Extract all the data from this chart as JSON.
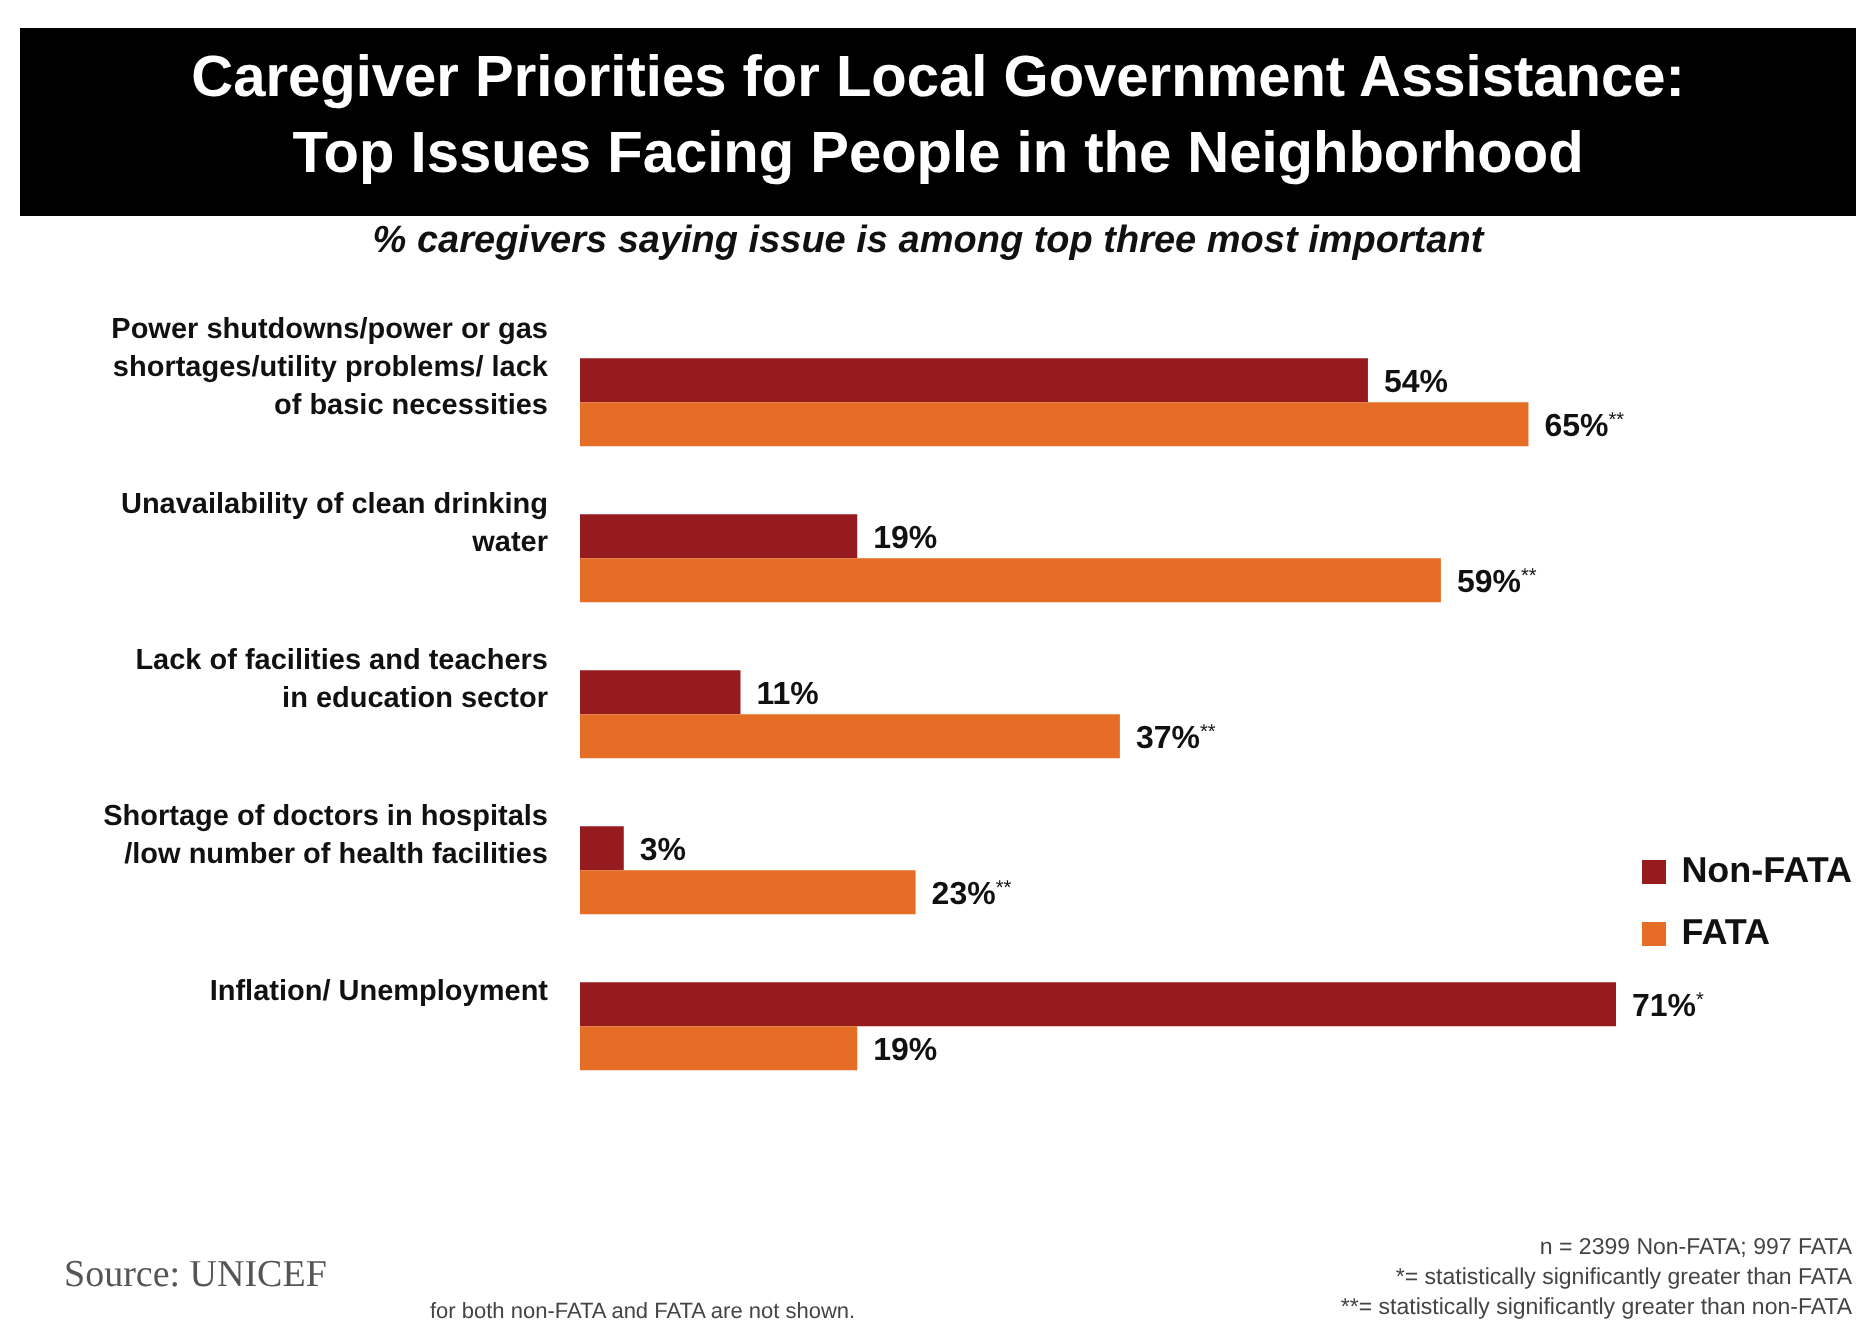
{
  "chart_data": {
    "type": "bar",
    "orientation": "horizontal",
    "title": "Caregiver Priorities for Local Government Assistance:\nTop Issues Facing People in the Neighborhood",
    "subtitle": "% caregivers saying issue is among top three most important",
    "categories": [
      "Power shutdowns/power or gas shortages/utility problems/ lack of basic necessities",
      "Unavailability of clean drinking water",
      "Lack of facilities and teachers in education sector",
      "Shortage of doctors in hospitals /low number of health facilities",
      "Inflation/ Unemployment"
    ],
    "series": [
      {
        "name": "Non-FATA",
        "color": "#961b1e",
        "values": [
          54,
          19,
          11,
          3,
          71
        ],
        "value_labels": [
          "54%",
          "19%",
          "11%",
          "3%",
          "71%$^{*}$"
        ]
      },
      {
        "name": "FATA",
        "color": "#e56d25",
        "values": [
          65,
          59,
          37,
          23,
          19
        ],
        "value_labels": [
          "65%$^{**}$",
          "59%$^{**}$",
          "37%$^{**}$",
          "23%$^{**}$",
          "19%"
        ]
      }
    ],
    "legend": "right",
    "grid": false,
    "annotations": [
      "Source: UNICEF",
      "for both non-FATA and FATA are not shown.",
      "n = 2399 Non-FATA; 997 FATA",
      "*= statistically significantly greater than FATA",
      "**= statistically significantly greater than non-FATA"
    ]
  }
}
